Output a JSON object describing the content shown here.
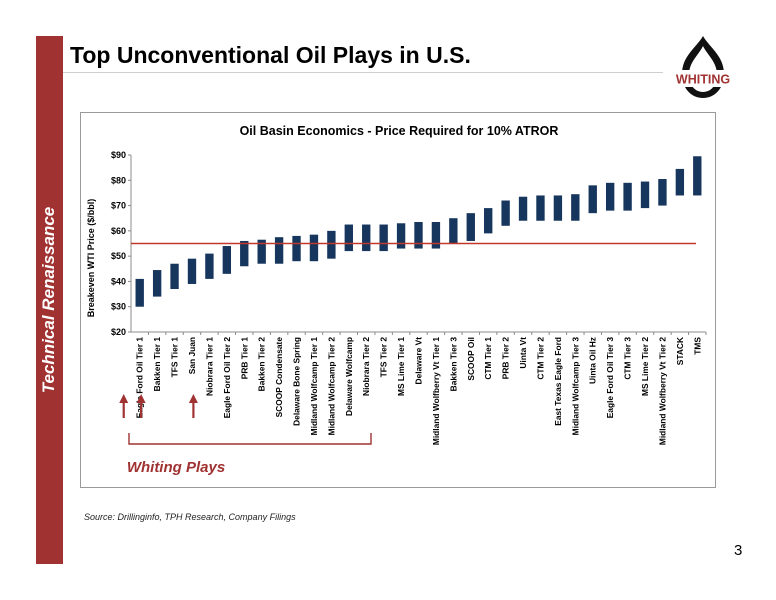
{
  "slide": {
    "title": "Top Unconventional Oil Plays in U.S.",
    "sidebar_text": "Technical  Renaissance",
    "logo_text": "WHITING",
    "source": "Source: Drillinginfo, TPH Research, Company Filings",
    "page_number": "3",
    "colors": {
      "sidebar": "#a03232",
      "bars": "#17365d",
      "reference_line": "#c0392b",
      "highlight": "#a03232"
    }
  },
  "chart_data": {
    "type": "bar",
    "title": "Oil Basin Economics - Price Required for 10% ATROR",
    "ylabel": "Breakeven WTI Price ($/bbl)",
    "xlabel": "",
    "ylim": [
      20,
      90
    ],
    "yticks": [
      "$20",
      "$30",
      "$40",
      "$50",
      "$60",
      "$70",
      "$80",
      "$90"
    ],
    "reference_line": 55,
    "annotation": "Whiting Plays",
    "highlighted_categories": [
      "Eagle Ford Oil Tier 1",
      "Bakken Tier 1",
      "Niobrara Tier 1"
    ],
    "categories": [
      "Eagle Ford Oil Tier 1",
      "Bakken Tier 1",
      "TFS Tier 1",
      "San Juan",
      "Niobrara Tier 1",
      "Eagle Ford Oil Tier 2",
      "PRB Tier 1",
      "Bakken Tier 2",
      "SCOOP Condensate",
      "Delaware Bone Spring",
      "Midland Wolfcamp Tier 1",
      "Midland Wolfcamp Tier 2",
      "Delaware Wolfcamp",
      "Niobrara Tier 2",
      "TFS Tier 2",
      "MS Lime Tier 1",
      "Delaware Vt",
      "Midland Wolfberry Vt Tier 1",
      "Bakken Tier 3",
      "SCOOP Oil",
      "CTM Tier 1",
      "PRB Tier 2",
      "Uinta Vt",
      "CTM Tier 2",
      "East Texas Eagle Ford",
      "Midland Wolfcamp Tier 3",
      "Uinta Oil Hz",
      "Eagle Ford Oil Tier 3",
      "CTM Tier 3",
      "MS Lime Tier 2",
      "Midland Wolfberry Vt Tier 2",
      "STACK",
      "TMS"
    ],
    "lows": [
      30,
      34,
      37,
      39,
      41,
      43,
      46,
      47,
      47,
      48,
      48,
      49,
      52,
      52,
      52,
      53,
      53,
      53,
      55,
      56,
      59,
      62,
      64,
      64,
      64,
      64,
      67,
      68,
      68,
      69,
      70,
      74,
      74
    ],
    "highs": [
      41,
      44.5,
      47,
      49,
      51,
      54,
      56,
      56.5,
      57.5,
      58,
      58.5,
      60,
      62.5,
      62.5,
      62.5,
      63,
      63.5,
      63.5,
      65,
      67,
      69,
      72,
      73.5,
      74,
      74,
      74.5,
      78,
      79,
      79,
      79.5,
      80.5,
      84.5,
      89.5
    ]
  }
}
